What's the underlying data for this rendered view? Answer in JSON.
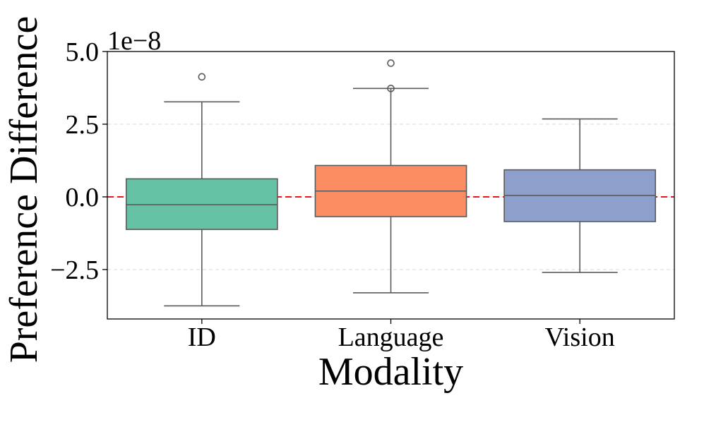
{
  "chart_data": {
    "type": "box",
    "title": "",
    "xlabel": "Modality",
    "ylabel": "Preference Difference",
    "y_offset_text": "1e−8",
    "y_scale_exponent": -8,
    "ylim": [
      -4.2,
      5.0
    ],
    "yticks": [
      -2.5,
      0.0,
      2.5,
      5.0
    ],
    "ytick_labels": [
      "−2.5",
      "0.0",
      "2.5",
      "5.0"
    ],
    "grid": "horizontal-dashed",
    "reference_line": {
      "y": 0,
      "color": "#e41a1c",
      "style": "dashed"
    },
    "categories": [
      "ID",
      "Language",
      "Vision"
    ],
    "boxes": [
      {
        "category": "ID",
        "color": "#66c2a5",
        "whisker_low": -3.75,
        "q1": -1.12,
        "median": -0.27,
        "q3": 0.62,
        "whisker_high": 3.27,
        "outliers": [
          4.13
        ]
      },
      {
        "category": "Language",
        "color": "#fc8d62",
        "whisker_low": -3.3,
        "q1": -0.68,
        "median": 0.2,
        "q3": 1.08,
        "whisker_high": 3.73,
        "outliers": [
          3.73,
          4.6
        ]
      },
      {
        "category": "Vision",
        "color": "#8da0cb",
        "whisker_low": -2.6,
        "q1": -0.85,
        "median": 0.05,
        "q3": 0.93,
        "whisker_high": 2.68,
        "outliers": []
      }
    ]
  }
}
